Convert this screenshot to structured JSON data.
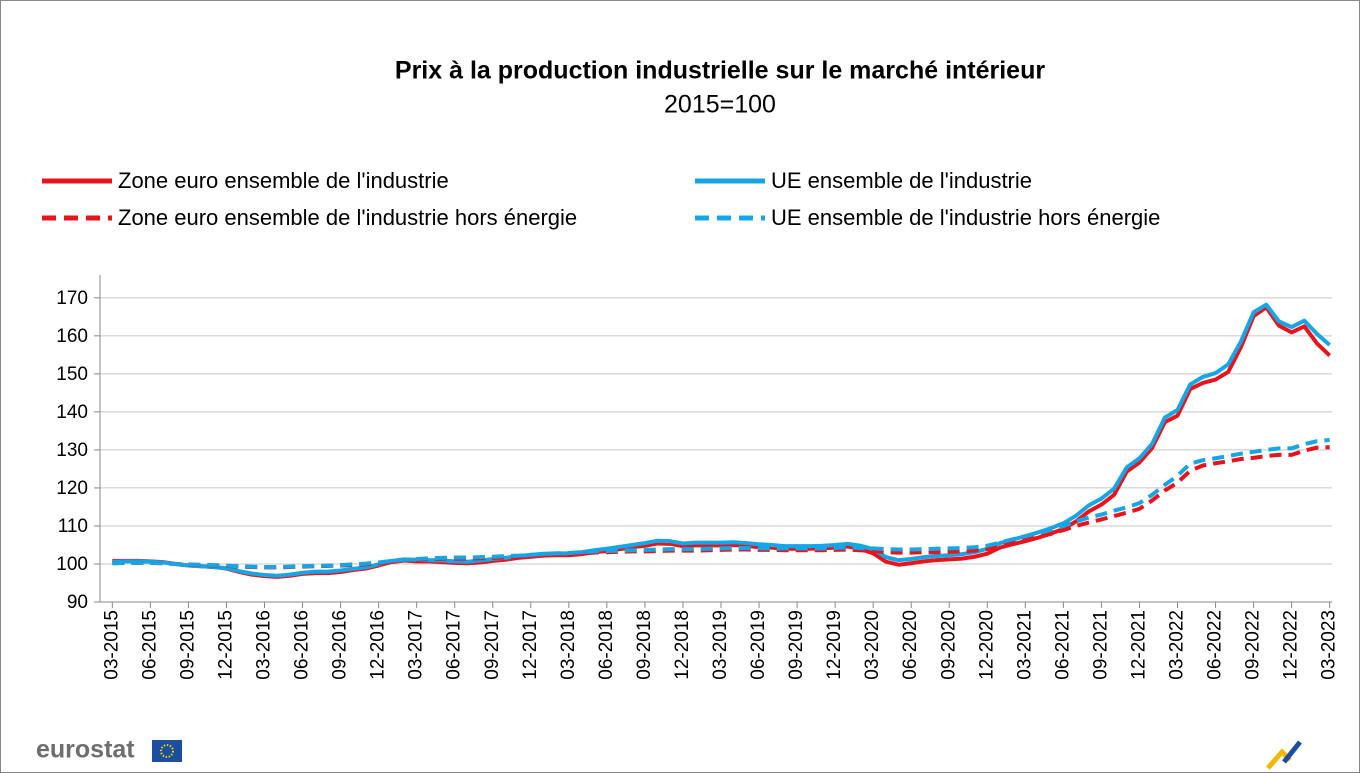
{
  "chart_data": {
    "type": "line",
    "title": "Prix à la production industrielle sur le marché intérieur",
    "subtitle": "2015=100",
    "source": "eurostat",
    "categories": [
      "03-2015",
      null,
      null,
      "06-2015",
      null,
      null,
      "09-2015",
      null,
      null,
      "12-2015",
      null,
      null,
      "03-2016",
      null,
      null,
      "06-2016",
      null,
      null,
      "09-2016",
      null,
      null,
      "12-2016",
      null,
      null,
      "03-2017",
      null,
      null,
      "06-2017",
      null,
      null,
      "09-2017",
      null,
      null,
      "12-2017",
      null,
      null,
      "03-2018",
      null,
      null,
      "06-2018",
      null,
      null,
      "09-2018",
      null,
      null,
      "12-2018",
      null,
      null,
      "03-2019",
      null,
      null,
      "06-2019",
      null,
      null,
      "09-2019",
      null,
      null,
      "12-2019",
      null,
      null,
      "03-2020",
      null,
      null,
      "06-2020",
      null,
      null,
      "09-2020",
      null,
      null,
      "12-2020",
      null,
      null,
      "03-2021",
      null,
      null,
      "06-2021",
      null,
      null,
      "09-2021",
      null,
      null,
      "12-2021",
      null,
      null,
      "03-2022",
      null,
      null,
      "06-2022",
      null,
      null,
      "09-2022",
      null,
      null,
      "12-2022",
      null,
      null,
      "03-2023"
    ],
    "series": [
      {
        "name": "Zone euro ensemble de l'industrie",
        "color": "#e8141c",
        "style": "solid",
        "values": [
          100.8,
          100.8,
          100.8,
          100.7,
          100.5,
          100.0,
          99.6,
          99.4,
          99.2,
          98.8,
          97.9,
          97.2,
          96.8,
          96.6,
          96.9,
          97.4,
          97.6,
          97.6,
          97.9,
          98.4,
          98.8,
          99.6,
          100.5,
          100.9,
          100.7,
          100.7,
          100.5,
          100.3,
          100.2,
          100.4,
          100.8,
          101.1,
          101.6,
          101.9,
          102.2,
          102.3,
          102.3,
          102.6,
          103.1,
          103.4,
          103.9,
          104.4,
          104.8,
          105.4,
          105.3,
          104.7,
          104.9,
          104.9,
          104.9,
          105.0,
          104.8,
          104.4,
          104.3,
          104.0,
          104.0,
          104.0,
          104.1,
          104.3,
          104.6,
          103.9,
          102.8,
          100.6,
          99.8,
          100.2,
          100.7,
          101.0,
          101.2,
          101.4,
          101.9,
          102.7,
          104.3,
          105.2,
          106.0,
          106.9,
          108.0,
          109.2,
          111.2,
          113.8,
          115.6,
          118.2,
          124.3,
          126.7,
          130.5,
          137.3,
          139.0,
          146.0,
          147.6,
          148.5,
          150.5,
          157.0,
          165.2,
          167.5,
          162.7,
          160.9,
          162.5,
          158.0,
          154.8
        ]
      },
      {
        "name": "UE ensemble de l'industrie",
        "color": "#16a5e5",
        "style": "solid",
        "values": [
          100.6,
          100.7,
          100.7,
          100.6,
          100.4,
          100.0,
          99.6,
          99.4,
          99.2,
          98.9,
          98.1,
          97.5,
          97.1,
          96.9,
          97.2,
          97.7,
          98.0,
          98.0,
          98.3,
          98.7,
          99.1,
          99.9,
          100.8,
          101.2,
          101.1,
          101.0,
          100.9,
          100.7,
          100.6,
          100.9,
          101.3,
          101.6,
          102.1,
          102.4,
          102.7,
          102.8,
          102.8,
          103.1,
          103.6,
          104.0,
          104.5,
          105.0,
          105.5,
          106.1,
          106.0,
          105.4,
          105.6,
          105.6,
          105.6,
          105.7,
          105.5,
          105.2,
          105.0,
          104.7,
          104.7,
          104.7,
          104.8,
          105.0,
          105.3,
          104.8,
          103.9,
          101.8,
          101.0,
          101.3,
          101.8,
          102.1,
          102.3,
          102.6,
          103.1,
          104.0,
          105.5,
          106.4,
          107.3,
          108.3,
          109.4,
          110.7,
          112.7,
          115.4,
          117.2,
          119.8,
          125.4,
          127.8,
          131.6,
          138.5,
          140.5,
          147.2,
          149.2,
          150.2,
          152.5,
          158.5,
          166.2,
          168.2,
          163.8,
          162.3,
          164.0,
          160.5,
          157.6
        ]
      },
      {
        "name": "Zone euro ensemble de l'industrie hors énergie",
        "color": "#e8141c",
        "style": "dashed",
        "values": [
          100.2,
          100.3,
          100.3,
          100.3,
          100.2,
          100.0,
          99.8,
          99.7,
          99.6,
          99.5,
          99.3,
          99.2,
          99.1,
          99.1,
          99.2,
          99.3,
          99.4,
          99.5,
          99.6,
          99.7,
          99.9,
          100.2,
          100.6,
          100.9,
          101.1,
          101.3,
          101.4,
          101.4,
          101.4,
          101.5,
          101.6,
          101.7,
          101.9,
          102.1,
          102.3,
          102.5,
          102.6,
          102.8,
          103.0,
          103.1,
          103.2,
          103.3,
          103.3,
          103.4,
          103.5,
          103.5,
          103.5,
          103.6,
          103.7,
          103.8,
          103.8,
          103.7,
          103.7,
          103.6,
          103.6,
          103.6,
          103.6,
          103.7,
          103.8,
          103.6,
          103.4,
          103.1,
          103.0,
          103.0,
          103.1,
          103.1,
          103.2,
          103.3,
          103.5,
          103.9,
          104.7,
          105.5,
          106.3,
          107.1,
          107.9,
          108.9,
          110.0,
          110.9,
          111.7,
          112.6,
          113.5,
          114.5,
          116.7,
          119.3,
          121.4,
          124.5,
          125.9,
          126.5,
          127.0,
          127.6,
          127.9,
          128.4,
          128.7,
          128.7,
          129.8,
          130.6,
          130.7
        ]
      },
      {
        "name": "UE ensemble de l'industrie hors énergie",
        "color": "#16a5e5",
        "style": "dashed",
        "values": [
          100.2,
          100.3,
          100.3,
          100.3,
          100.2,
          100.0,
          99.9,
          99.8,
          99.7,
          99.6,
          99.4,
          99.3,
          99.2,
          99.2,
          99.3,
          99.4,
          99.5,
          99.6,
          99.7,
          99.9,
          100.1,
          100.4,
          100.8,
          101.1,
          101.3,
          101.5,
          101.6,
          101.7,
          101.7,
          101.8,
          101.9,
          102.1,
          102.2,
          102.4,
          102.6,
          102.8,
          102.9,
          103.1,
          103.3,
          103.4,
          103.5,
          103.6,
          103.7,
          103.8,
          103.9,
          103.9,
          103.9,
          104.0,
          104.1,
          104.2,
          104.2,
          104.1,
          104.1,
          104.1,
          104.1,
          104.1,
          104.1,
          104.2,
          104.4,
          104.2,
          104.1,
          103.9,
          103.8,
          103.8,
          103.9,
          104.0,
          104.1,
          104.2,
          104.4,
          104.8,
          105.6,
          106.5,
          107.3,
          108.1,
          109.0,
          110.0,
          111.2,
          112.2,
          113.0,
          114.0,
          114.9,
          116.0,
          118.2,
          120.8,
          123.2,
          126.4,
          127.3,
          127.8,
          128.4,
          129.0,
          129.5,
          130.0,
          130.4,
          130.4,
          131.5,
          132.3,
          132.6
        ]
      }
    ],
    "ylim": [
      90,
      176
    ],
    "yticks": [
      90,
      100,
      110,
      120,
      130,
      140,
      150,
      160,
      170
    ],
    "grid": true
  }
}
